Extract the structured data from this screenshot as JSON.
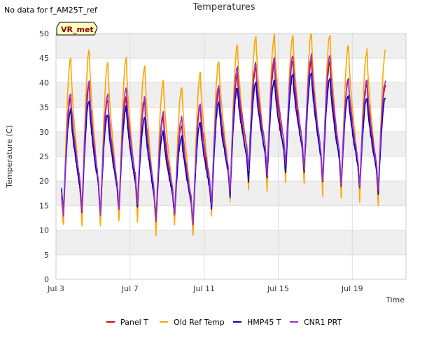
{
  "no_data_note": "No data for f_AM25T_ref",
  "badge": {
    "label": "VR_met"
  },
  "colors": {
    "panel_t": "#dd0000",
    "old_ref_temp": "#ffa500",
    "hmp45_t": "#0000cc",
    "cnr1_prt": "#9a32cd",
    "band": "#efefef",
    "badge_fill": "#ffffc0",
    "badge_text": "#8b0000"
  },
  "chart_data": {
    "type": "line",
    "title": "Temperatures",
    "xlabel": "Time",
    "ylabel": "Temperature (C)",
    "xlim": [
      3.0,
      21.9
    ],
    "ylim": [
      0,
      50
    ],
    "yticks": [
      0,
      5,
      10,
      15,
      20,
      25,
      30,
      35,
      40,
      45,
      50
    ],
    "xticks": [
      {
        "value": 3,
        "label": "Jul 3"
      },
      {
        "value": 7,
        "label": "Jul 7"
      },
      {
        "value": 11,
        "label": "Jul 11"
      },
      {
        "value": 15,
        "label": "Jul 15"
      },
      {
        "value": 19,
        "label": "Jul 19"
      }
    ],
    "grid": true,
    "legend_position": "bottom",
    "x_start": 3.3,
    "x_end": 20.8,
    "series": [
      {
        "name": "Panel T",
        "color": "#dd0000",
        "daily_min": [
          12.0,
          12.0,
          12.0,
          13.0,
          13.0,
          10.5,
          12.0,
          10.0,
          14.5,
          16.5,
          20.0,
          19.5,
          21.0,
          20.5,
          19.0,
          18.5,
          17.5,
          17.0
        ],
        "daily_max": [
          37.0,
          39.5,
          36.5,
          37.0,
          36.0,
          33.0,
          31.5,
          35.0,
          38.5,
          41.5,
          43.0,
          44.0,
          44.5,
          44.5,
          44.0,
          40.5,
          39.5
        ]
      },
      {
        "name": "Old Ref Temp",
        "color": "#ffa500",
        "daily_min": [
          11.0,
          10.5,
          10.5,
          11.5,
          11.5,
          9.0,
          11.0,
          9.0,
          12.5,
          16.0,
          18.0,
          18.0,
          19.5,
          19.5,
          17.0,
          16.5,
          16.0,
          15.0
        ],
        "daily_max": [
          45.0,
          46.5,
          44.0,
          45.0,
          43.5,
          40.5,
          39.0,
          42.0,
          44.5,
          47.5,
          49.5,
          49.5,
          49.5,
          50.0,
          50.0,
          47.5,
          46.5
        ]
      },
      {
        "name": "HMP45 T",
        "color": "#0000cc",
        "daily_min": [
          13.5,
          13.5,
          13.0,
          14.0,
          14.5,
          12.0,
          13.0,
          11.5,
          14.0,
          17.0,
          20.0,
          20.5,
          21.5,
          21.5,
          19.5,
          19.0,
          18.5,
          17.5
        ],
        "daily_max": [
          34.5,
          36.5,
          33.5,
          35.0,
          33.0,
          30.0,
          29.0,
          32.0,
          36.0,
          39.0,
          40.0,
          40.5,
          41.5,
          42.0,
          41.0,
          37.5,
          37.0
        ]
      },
      {
        "name": "CNR1 PRT",
        "color": "#9a32cd",
        "daily_min": [
          13.0,
          14.0,
          13.0,
          14.0,
          15.0,
          12.0,
          13.0,
          11.0,
          15.0,
          17.5,
          22.0,
          21.5,
          23.0,
          22.5,
          20.0,
          19.5,
          19.0,
          18.5
        ],
        "daily_max": [
          38.0,
          40.5,
          37.5,
          39.0,
          37.0,
          34.0,
          33.0,
          36.0,
          39.5,
          43.0,
          44.0,
          45.0,
          45.5,
          45.5,
          45.5,
          41.0,
          40.5
        ]
      }
    ]
  }
}
